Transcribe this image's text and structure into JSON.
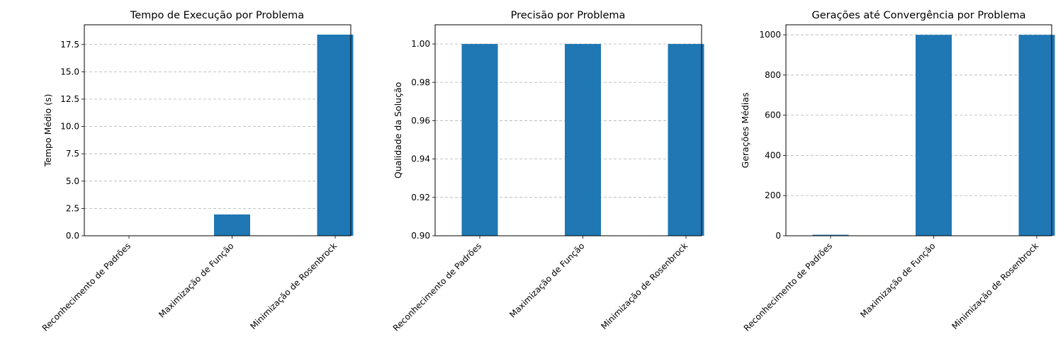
{
  "colors": {
    "bar": "#1f77b4",
    "grid": "#b0b0b0",
    "axis": "#000000"
  },
  "chart_data": [
    {
      "type": "bar",
      "title": "Tempo de Execução por Problema",
      "xlabel": "",
      "ylabel": "Tempo Médio (s)",
      "categories": [
        "Reconhecimento de Padrões",
        "Maximização de Função",
        "Minimização de Rosenbrock"
      ],
      "values": [
        0.02,
        1.95,
        18.4
      ],
      "ylim": [
        0,
        19.3
      ],
      "yticks": [
        0,
        2.5,
        5,
        7.5,
        10,
        12.5,
        15,
        17.5
      ],
      "ytick_labels": [
        "0.0",
        "2.5",
        "5.0",
        "7.5",
        "10.0",
        "12.5",
        "15.0",
        "17.5"
      ],
      "grid": "y-dashed"
    },
    {
      "type": "bar",
      "title": "Precisão por Problema",
      "xlabel": "",
      "ylabel": "Qualidade da Solução",
      "categories": [
        "Reconhecimento de Padrões",
        "Maximização de Função",
        "Minimização de Rosenbrock"
      ],
      "values": [
        1.0,
        1.0,
        1.0
      ],
      "ylim": [
        0.9,
        1.01
      ],
      "yticks": [
        0.9,
        0.92,
        0.94,
        0.96,
        0.98,
        1.0
      ],
      "ytick_labels": [
        "0.90",
        "0.92",
        "0.94",
        "0.96",
        "0.98",
        "1.00"
      ],
      "grid": "y-dashed"
    },
    {
      "type": "bar",
      "title": "Gerações até Convergência por Problema",
      "xlabel": "",
      "ylabel": "Gerações Médias",
      "categories": [
        "Reconhecimento de Padrões",
        "Maximização de Função",
        "Minimização de Rosenbrock"
      ],
      "values": [
        5,
        1000,
        1000
      ],
      "ylim": [
        0,
        1050
      ],
      "yticks": [
        0,
        200,
        400,
        600,
        800,
        1000
      ],
      "ytick_labels": [
        "0",
        "200",
        "400",
        "600",
        "800",
        "1000"
      ],
      "grid": "y-dashed"
    }
  ]
}
